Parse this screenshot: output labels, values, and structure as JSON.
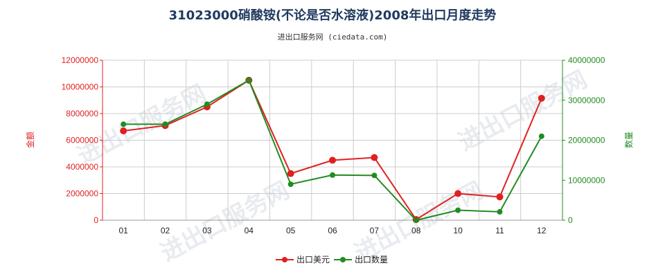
{
  "chart_data": {
    "type": "line",
    "title": "31023000硝酸铵(不论是否水溶液)2008年出口月度走势",
    "subtitle": "进出口服务网 (ciedata.com)",
    "categories": [
      "01",
      "02",
      "03",
      "04",
      "05",
      "06",
      "07",
      "08",
      "10",
      "11",
      "12"
    ],
    "y_left": {
      "label": "金额",
      "ylim": [
        0,
        12000000
      ],
      "ticks": [
        "0",
        "2000000",
        "4000000",
        "6000000",
        "8000000",
        "10000000",
        "12000000"
      ]
    },
    "y_right": {
      "label": "数量",
      "ylim": [
        0,
        40000000
      ],
      "ticks": [
        "0",
        "10000000",
        "20000000",
        "30000000",
        "40000000"
      ]
    },
    "series": [
      {
        "name": "出口美元",
        "axis": "left",
        "color": "#e02020",
        "values": [
          6700000,
          7100000,
          8500000,
          10500000,
          3500000,
          4500000,
          4700000,
          50000,
          2000000,
          1750000,
          9150000
        ]
      },
      {
        "name": "出口数量",
        "axis": "right",
        "color": "#228b22",
        "values": [
          24000000,
          24000000,
          29000000,
          35000000,
          9000000,
          11300000,
          11200000,
          0,
          2500000,
          2100000,
          21000000
        ]
      }
    ],
    "grid": true,
    "legend_position": "bottom-center",
    "watermark": "进出口服务网"
  }
}
